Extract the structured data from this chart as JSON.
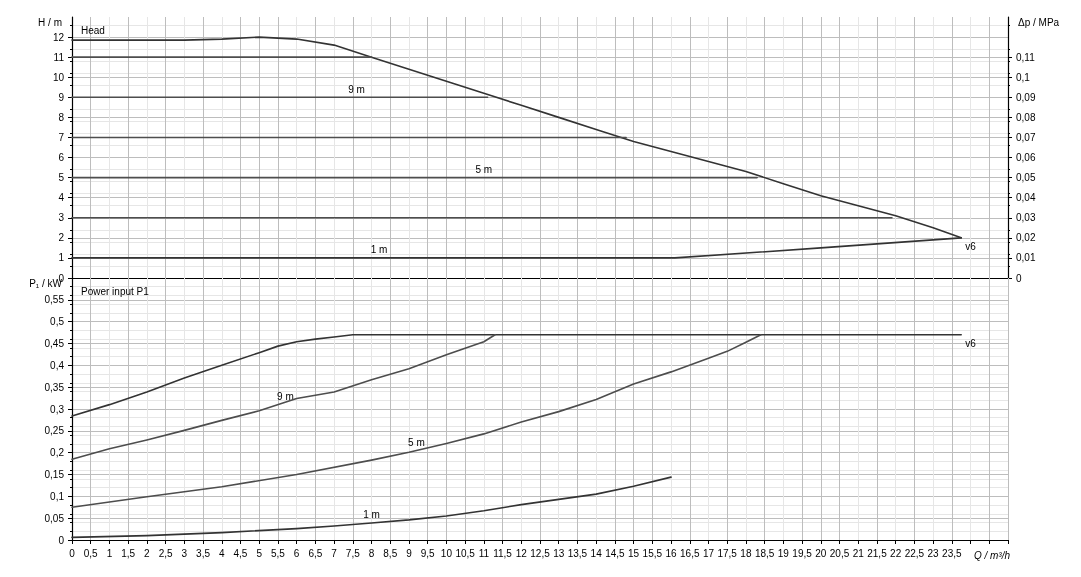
{
  "chart_data": [
    {
      "type": "line",
      "title": "Head",
      "ylabel": "H / m",
      "y2label": "Δp / MPa",
      "tick_labels": "y",
      "grid": true,
      "marker": "none",
      "line_style": "solid",
      "xlim": [
        0,
        25
      ],
      "xticks": [
        0,
        0.5,
        1,
        1.5,
        2,
        2.5,
        3,
        3.5,
        4,
        4.5,
        5,
        5.5,
        6,
        6.5,
        7,
        7.5,
        8,
        8.5,
        9,
        9.5,
        10,
        10.5,
        11,
        11.5,
        12,
        12.5,
        13,
        13.5,
        14,
        14.5,
        15,
        15.5,
        16,
        16.5,
        17,
        17.5,
        18,
        18.5,
        19,
        19.5,
        20,
        20.5,
        21,
        21.5,
        22,
        22.5,
        23,
        23.5,
        24,
        24.5,
        25
      ],
      "ylim": [
        0,
        13
      ],
      "yticks": [
        0,
        1,
        2,
        3,
        4,
        5,
        6,
        7,
        8,
        9,
        10,
        11,
        12
      ],
      "y2lim": [
        0,
        0.13
      ],
      "y2ticks": [
        0,
        {
          "value": 0.01,
          "label": "0,01"
        },
        {
          "value": 0.02,
          "label": "0,02"
        },
        {
          "value": 0.03,
          "label": "0,03"
        },
        {
          "value": 0.04,
          "label": "0,04"
        },
        {
          "value": 0.05,
          "label": "0,05"
        },
        {
          "value": 0.06,
          "label": "0,06"
        },
        {
          "value": 0.07,
          "label": "0,07"
        },
        {
          "value": 0.08,
          "label": "0,08"
        },
        {
          "value": 0.09,
          "label": "0,09"
        },
        {
          "value": 0.1,
          "label": "0,1"
        },
        {
          "value": 0.11,
          "label": "0,11"
        }
      ],
      "series": [
        {
          "color": "#333333",
          "x": [
            0,
            2,
            3,
            4,
            5,
            6,
            7,
            8,
            9,
            10,
            11,
            12,
            13,
            14,
            15,
            16,
            17,
            18,
            19,
            20,
            21,
            22,
            23,
            23.75
          ],
          "values": [
            11.85,
            11.85,
            11.85,
            11.9,
            12.0,
            11.9,
            11.6,
            11.0,
            10.4,
            9.8,
            9.2,
            8.6,
            8.0,
            7.4,
            6.8,
            6.3,
            5.8,
            5.3,
            4.7,
            4.1,
            3.6,
            3.1,
            2.5,
            2.0
          ]
        },
        {
          "color": "#4d4d4d",
          "x": [
            0,
            8.0
          ],
          "values": [
            11,
            11
          ]
        },
        {
          "color": "#4d4d4d",
          "x": [
            0,
            11.1
          ],
          "values": [
            9,
            9
          ]
        },
        {
          "color": "#4d4d4d",
          "x": [
            0,
            14.8
          ],
          "values": [
            7,
            7
          ]
        },
        {
          "color": "#4d4d4d",
          "x": [
            0,
            18.3
          ],
          "values": [
            5,
            5
          ]
        },
        {
          "color": "#4d4d4d",
          "x": [
            0,
            21.9
          ],
          "values": [
            3,
            3
          ]
        },
        {
          "color": "#333333",
          "x": [
            0,
            16.1,
            20,
            23.75
          ],
          "values": [
            1,
            1,
            1.5,
            2
          ]
        }
      ],
      "annotations": [
        {
          "text": "9 m",
          "x": 7.6,
          "y": 9
        },
        {
          "text": "5 m",
          "x": 11,
          "y": 5
        },
        {
          "text": "1 m",
          "x": 8.2,
          "y": 1
        },
        {
          "text": "v6",
          "x": 23.75,
          "y": 2
        }
      ]
    },
    {
      "type": "line",
      "title": "Power input P1",
      "ylabel": "P₁ / kW",
      "xlabel": "Q / m³/h",
      "grid": true,
      "marker": "none",
      "line_style": "solid",
      "xlim": [
        0,
        25
      ],
      "xticks": [
        0,
        {
          "value": 0.5,
          "label": "0,5"
        },
        1,
        {
          "value": 1.5,
          "label": "1,5"
        },
        2,
        {
          "value": 2.5,
          "label": "2,5"
        },
        3,
        {
          "value": 3.5,
          "label": "3,5"
        },
        4,
        {
          "value": 4.5,
          "label": "4,5"
        },
        5,
        {
          "value": 5.5,
          "label": "5,5"
        },
        6,
        {
          "value": 6.5,
          "label": "6,5"
        },
        7,
        {
          "value": 7.5,
          "label": "7,5"
        },
        8,
        {
          "value": 8.5,
          "label": "8,5"
        },
        9,
        {
          "value": 9.5,
          "label": "9,5"
        },
        10,
        {
          "value": 10.5,
          "label": "10,5"
        },
        11,
        {
          "value": 11.5,
          "label": "11,5"
        },
        12,
        {
          "value": 12.5,
          "label": "12,5"
        },
        13,
        {
          "value": 13.5,
          "label": "13,5"
        },
        14,
        {
          "value": 14.5,
          "label": "14,5"
        },
        15,
        {
          "value": 15.5,
          "label": "15,5"
        },
        16,
        {
          "value": 16.5,
          "label": "16,5"
        },
        17,
        {
          "value": 17.5,
          "label": "17,5"
        },
        18,
        {
          "value": 18.5,
          "label": "18,5"
        },
        19,
        {
          "value": 19.5,
          "label": "19,5"
        },
        20,
        {
          "value": 20.5,
          "label": "20,5"
        },
        21,
        {
          "value": 21.5,
          "label": "21,5"
        },
        22,
        {
          "value": 22.5,
          "label": "22,5"
        },
        23,
        {
          "value": 23.5,
          "label": "23,5"
        },
        {
          "value": 24,
          "label": null
        },
        {
          "value": 24.5,
          "label": null
        },
        {
          "value": 25,
          "label": null
        }
      ],
      "ylim": [
        0,
        0.6
      ],
      "yticks": [
        0,
        {
          "value": 0.05,
          "label": "0,05"
        },
        {
          "value": 0.1,
          "label": "0,1"
        },
        {
          "value": 0.15,
          "label": "0,15"
        },
        {
          "value": 0.2,
          "label": "0,2"
        },
        {
          "value": 0.25,
          "label": "0,25"
        },
        {
          "value": 0.3,
          "label": "0,3"
        },
        {
          "value": 0.35,
          "label": "0,35"
        },
        {
          "value": 0.4,
          "label": "0,4"
        },
        {
          "value": 0.45,
          "label": "0,45"
        },
        {
          "value": 0.5,
          "label": "0,5"
        },
        {
          "value": 0.55,
          "label": "0,55"
        }
      ],
      "series": [
        {
          "color": "#333333",
          "x": [
            0,
            1,
            2,
            3,
            4,
            5,
            5.5,
            6,
            6.5,
            7,
            7.5,
            10,
            15,
            20,
            23.75
          ],
          "values": [
            0.284,
            0.31,
            0.339,
            0.371,
            0.4,
            0.429,
            0.444,
            0.454,
            0.46,
            0.465,
            0.47,
            0.47,
            0.47,
            0.47,
            0.47
          ]
        },
        {
          "color": "#4d4d4d",
          "x": [
            0,
            1,
            2,
            3,
            4,
            5,
            6,
            7,
            8,
            9,
            10,
            11,
            11.3
          ],
          "values": [
            0.185,
            0.209,
            0.229,
            0.251,
            0.274,
            0.296,
            0.324,
            0.339,
            0.367,
            0.392,
            0.424,
            0.454,
            0.47
          ]
        },
        {
          "color": "#4d4d4d",
          "x": [
            0,
            2,
            4,
            6,
            8,
            9,
            10,
            11,
            12,
            13,
            14,
            15,
            16,
            17,
            17.5,
            18,
            18.4
          ],
          "values": [
            0.075,
            0.099,
            0.122,
            0.15,
            0.183,
            0.201,
            0.221,
            0.243,
            0.27,
            0.294,
            0.322,
            0.357,
            0.385,
            0.416,
            0.432,
            0.453,
            0.47
          ]
        },
        {
          "color": "#333333",
          "x": [
            0,
            2,
            4,
            6,
            7,
            8,
            9,
            10,
            11,
            12,
            13,
            14,
            15,
            16
          ],
          "values": [
            0.006,
            0.01,
            0.017,
            0.026,
            0.032,
            0.039,
            0.046,
            0.055,
            0.067,
            0.081,
            0.093,
            0.105,
            0.123,
            0.144
          ]
        }
      ],
      "annotations": [
        {
          "text": "9 m",
          "x": 5.7,
          "y": 0.31
        },
        {
          "text": "5 m",
          "x": 9.2,
          "y": 0.205
        },
        {
          "text": "1 m",
          "x": 8,
          "y": 0.039
        },
        {
          "text": "v6",
          "x": 23.75,
          "y": 0.47
        }
      ]
    }
  ]
}
